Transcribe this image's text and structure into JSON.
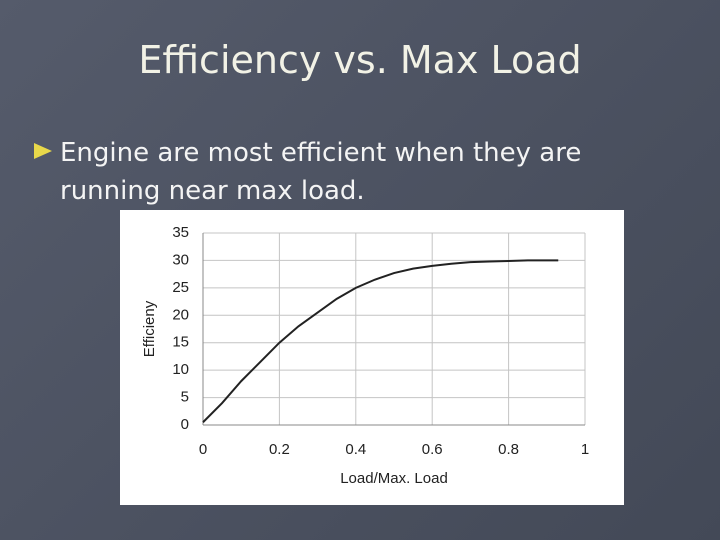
{
  "title": "Efficiency vs. Max Load",
  "bullet": "Engine are most efficient when they are running near max load.",
  "chart_data": {
    "type": "line",
    "xlabel": "Load/Max. Load",
    "ylabel": "Efficieny",
    "x": [
      0,
      0.05,
      0.1,
      0.15,
      0.2,
      0.25,
      0.3,
      0.35,
      0.4,
      0.45,
      0.5,
      0.55,
      0.6,
      0.65,
      0.7,
      0.75,
      0.8,
      0.85,
      0.93
    ],
    "values": [
      0.5,
      4,
      8,
      11.5,
      15,
      18,
      20.5,
      23,
      25,
      26.5,
      27.7,
      28.5,
      29,
      29.4,
      29.7,
      29.8,
      29.9,
      30,
      30
    ],
    "color": "#222222",
    "xlim": [
      0,
      1
    ],
    "xticks": [
      0,
      0.2,
      0.4,
      0.6,
      0.8,
      1
    ],
    "ylim": [
      0,
      35
    ],
    "yticks": [
      0,
      5,
      10,
      15,
      20,
      25,
      30,
      35
    ],
    "grid": true
  }
}
